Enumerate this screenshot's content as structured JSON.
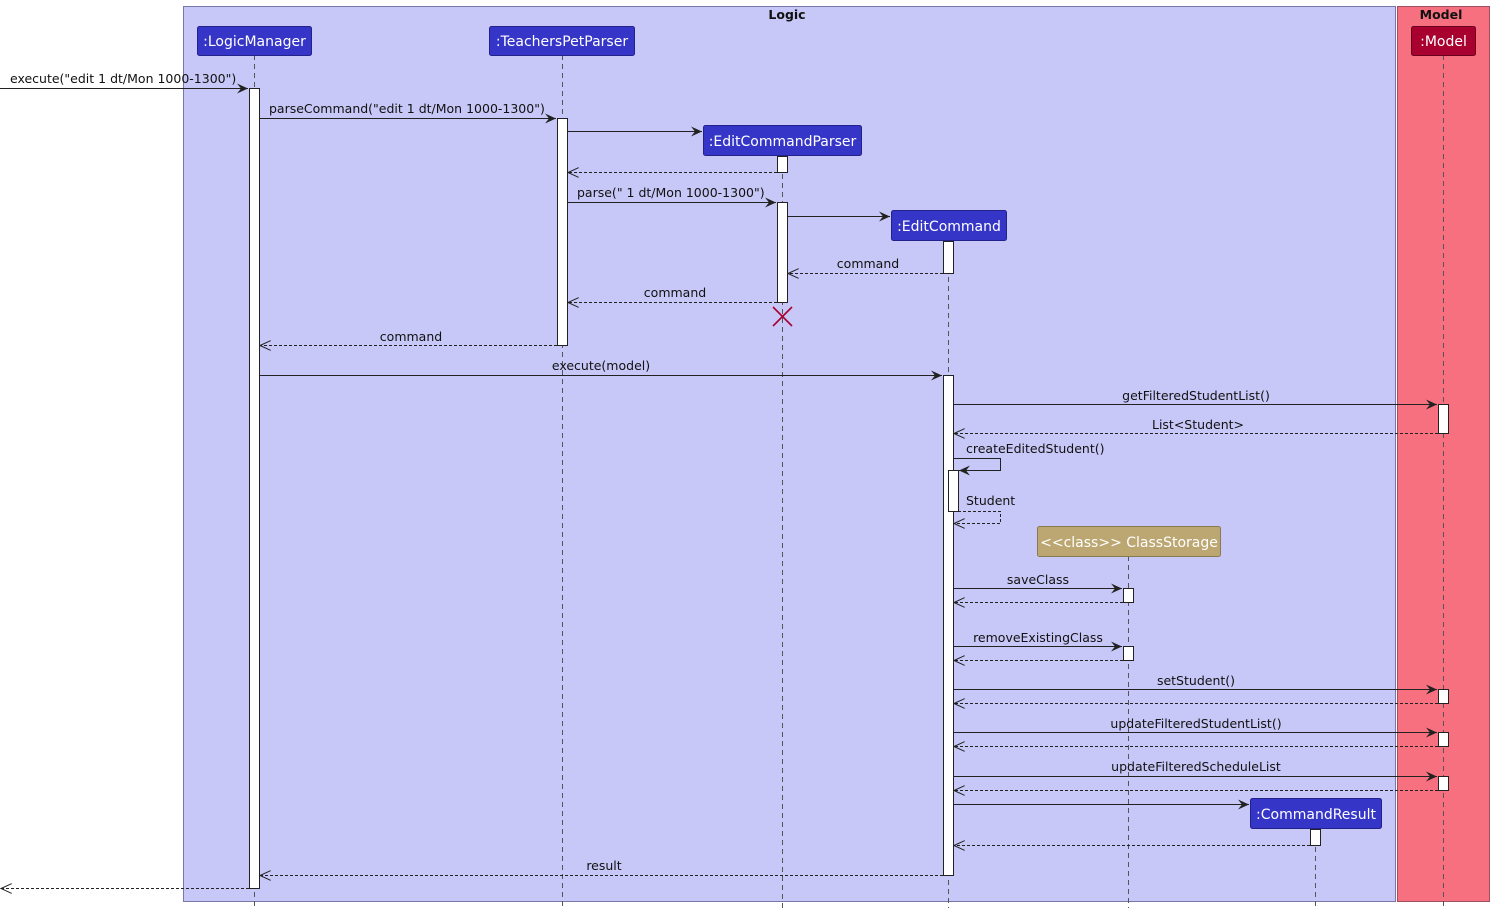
{
  "groups": {
    "logic": {
      "title": "Logic",
      "color": "#C8C8F8"
    },
    "model": {
      "title": "Model",
      "color": "#F7707F"
    }
  },
  "participants": {
    "logic_manager": {
      "label": ":LogicManager",
      "color": "#3535C8"
    },
    "parser": {
      "label": ":TeachersPetParser",
      "color": "#3535C8"
    },
    "edit_parser": {
      "label": ":EditCommandParser",
      "color": "#3535C8"
    },
    "edit_command": {
      "label": ":EditCommand",
      "color": "#3535C8"
    },
    "class_storage": {
      "label": "<<class>> ClassStorage",
      "color": "#BCA772"
    },
    "command_result": {
      "label": ":CommandResult",
      "color": "#3535C8"
    },
    "model": {
      "label": ":Model",
      "color": "#A8002F"
    }
  },
  "messages": {
    "execute": "execute(\"edit 1 dt/Mon 1000-1300\")",
    "parse_command": "parseCommand(\"edit 1 dt/Mon 1000-1300\")",
    "parse": "parse(\" 1 dt/Mon 1000-1300\")",
    "command_1": "command",
    "command_2": "command",
    "command_3": "command",
    "execute_model": "execute(model)",
    "get_filtered": "getFilteredStudentList()",
    "list_student": "List<Student>",
    "create_edited": "createEditedStudent()",
    "student": "Student",
    "save_class": "saveClass",
    "remove_existing": "removeExistingClass",
    "set_student": "setStudent()",
    "update_student_list": "updateFilteredStudentList()",
    "update_schedule_list": "updateFilteredScheduleList",
    "result": "result"
  }
}
